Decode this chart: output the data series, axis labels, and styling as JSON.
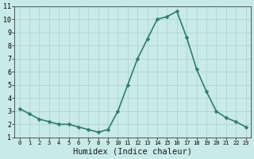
{
  "x": [
    0,
    1,
    2,
    3,
    4,
    5,
    6,
    7,
    8,
    9,
    10,
    11,
    12,
    13,
    14,
    15,
    16,
    17,
    18,
    19,
    20,
    21,
    22,
    23
  ],
  "y": [
    3.2,
    2.8,
    2.4,
    2.2,
    2.0,
    2.0,
    1.8,
    1.6,
    1.4,
    1.6,
    3.0,
    5.0,
    7.0,
    8.5,
    10.0,
    10.2,
    10.6,
    8.6,
    6.2,
    4.5,
    3.0,
    2.5,
    2.2,
    1.8
  ],
  "line_color": "#2e7d6e",
  "marker": "D",
  "marker_size": 2.5,
  "line_width": 1.2,
  "bg_color": "#c8eae8",
  "grid_color": "#afd4cf",
  "xlabel": "Humidex (Indice chaleur)",
  "xlim": [
    -0.5,
    23.5
  ],
  "ylim": [
    1,
    11
  ],
  "yticks": [
    1,
    2,
    3,
    4,
    5,
    6,
    7,
    8,
    9,
    10,
    11
  ],
  "xticks": [
    0,
    1,
    2,
    3,
    4,
    5,
    6,
    7,
    8,
    9,
    10,
    11,
    12,
    13,
    14,
    15,
    16,
    17,
    18,
    19,
    20,
    21,
    22,
    23
  ],
  "axis_color": "#555555",
  "font_size": 6,
  "xlabel_fontsize": 7.5
}
